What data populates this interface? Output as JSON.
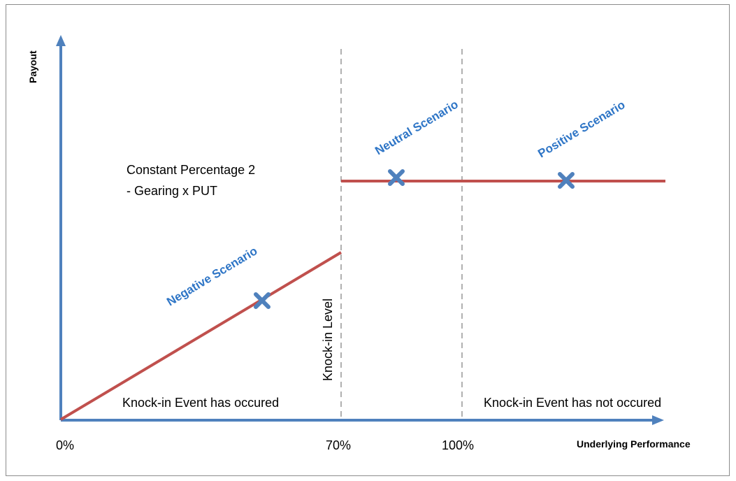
{
  "axes": {
    "y_label": "Payout",
    "x_label": "Underlying Performance",
    "x_ticks": [
      "0%",
      "70%",
      "100%"
    ]
  },
  "annotations": {
    "constant_line1": "Constant Percentage 2",
    "constant_line2": "- Gearing x PUT",
    "knock_in_level": "Knock-in Level",
    "occured": "Knock-in Event has occured",
    "not_occured": "Knock-in Event has not occured"
  },
  "scenarios": {
    "negative": "Negative Scenario",
    "neutral": "Neutral Scenario",
    "positive": "Positive Scenario"
  },
  "colors": {
    "axis": "#4f81bd",
    "payout_line": "#c0504d",
    "marker": "#4f81bd",
    "scenario_text": "#2e75c6",
    "dashed": "#b0b0b0"
  },
  "icons": {
    "marker": "x-cross-icon"
  }
}
